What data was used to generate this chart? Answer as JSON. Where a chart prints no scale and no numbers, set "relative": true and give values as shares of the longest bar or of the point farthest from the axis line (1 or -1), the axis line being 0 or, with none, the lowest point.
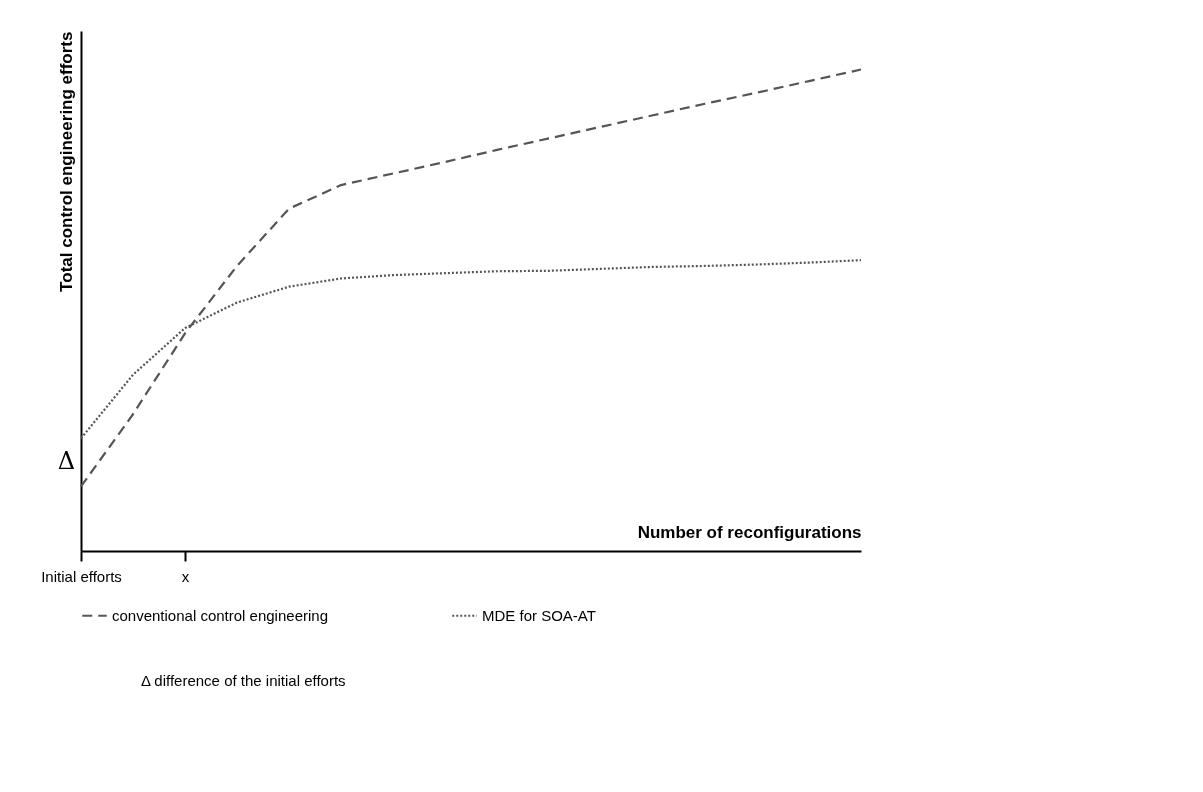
{
  "chart_data": {
    "type": "line",
    "relative": true,
    "ylabel": "Total control engineering efforts",
    "xlabel": "Number of reconfigurations",
    "categories": [
      "Initial efforts",
      null,
      "x",
      null,
      null,
      null,
      null,
      null,
      null,
      null,
      null,
      null,
      null,
      null,
      null,
      null
    ],
    "tick_labels": "x",
    "grid": false,
    "legend": "bottom",
    "marker": "none",
    "series": [
      {
        "name": "conventional control engineering",
        "color": "#555555",
        "line_style": "dashed",
        "values": [
          0.134,
          0.284,
          0.452,
          0.592,
          0.711,
          0.76,
          0.784,
          0.808,
          0.833,
          0.857,
          0.881,
          0.905,
          0.929,
          0.952,
          0.976,
          1
        ]
      },
      {
        "name": "MDE for SOA-AT",
        "color": "#555555",
        "line_style": "dotted",
        "values": [
          0.234,
          0.366,
          0.463,
          0.516,
          0.549,
          0.566,
          0.573,
          0.577,
          0.581,
          0.582,
          0.586,
          0.59,
          0.592,
          0.595,
          0.599,
          0.604
        ]
      }
    ],
    "annotations": [
      "Δ",
      "Δ  difference of the initial efforts"
    ]
  }
}
